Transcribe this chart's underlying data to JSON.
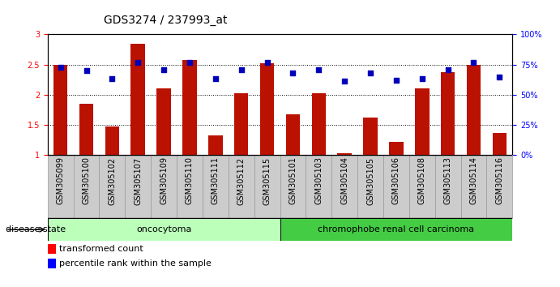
{
  "title": "GDS3274 / 237993_at",
  "samples": [
    "GSM305099",
    "GSM305100",
    "GSM305102",
    "GSM305107",
    "GSM305109",
    "GSM305110",
    "GSM305111",
    "GSM305112",
    "GSM305115",
    "GSM305101",
    "GSM305103",
    "GSM305104",
    "GSM305105",
    "GSM305106",
    "GSM305108",
    "GSM305113",
    "GSM305114",
    "GSM305116"
  ],
  "bar_values": [
    2.5,
    1.85,
    1.47,
    2.84,
    2.1,
    2.57,
    1.32,
    2.02,
    2.52,
    1.67,
    2.02,
    1.03,
    1.62,
    1.22,
    2.1,
    2.38,
    2.5,
    1.37
  ],
  "dot_values_pct": [
    73,
    70,
    63,
    77,
    71,
    77,
    63,
    71,
    77,
    68,
    71,
    61,
    68,
    62,
    63,
    71,
    77,
    65
  ],
  "groups": [
    {
      "label": "oncocytoma",
      "n": 9,
      "color": "#bbffbb"
    },
    {
      "label": "chromophobe renal cell carcinoma",
      "n": 9,
      "color": "#44cc44"
    }
  ],
  "bar_color": "#bb1100",
  "dot_color": "#0000bb",
  "ylim": [
    1.0,
    3.0
  ],
  "yticks_left": [
    1.0,
    1.5,
    2.0,
    2.5,
    3.0
  ],
  "yticks_left_labels": [
    "1",
    "1.5",
    "2",
    "2.5",
    "3"
  ],
  "yticks_right_vals": [
    0,
    25,
    50,
    75,
    100
  ],
  "yticks_right_labels": [
    "0%",
    "25%",
    "50%",
    "75%",
    "100%"
  ],
  "hlines": [
    1.5,
    2.0,
    2.5
  ],
  "legend_bar_label": "transformed count",
  "legend_dot_label": "percentile rank within the sample",
  "disease_state_label": "disease state",
  "title_fontsize": 10,
  "tick_fontsize": 7,
  "label_fontsize": 8,
  "xtick_bg_color": "#cccccc",
  "xtick_border_color": "#999999"
}
